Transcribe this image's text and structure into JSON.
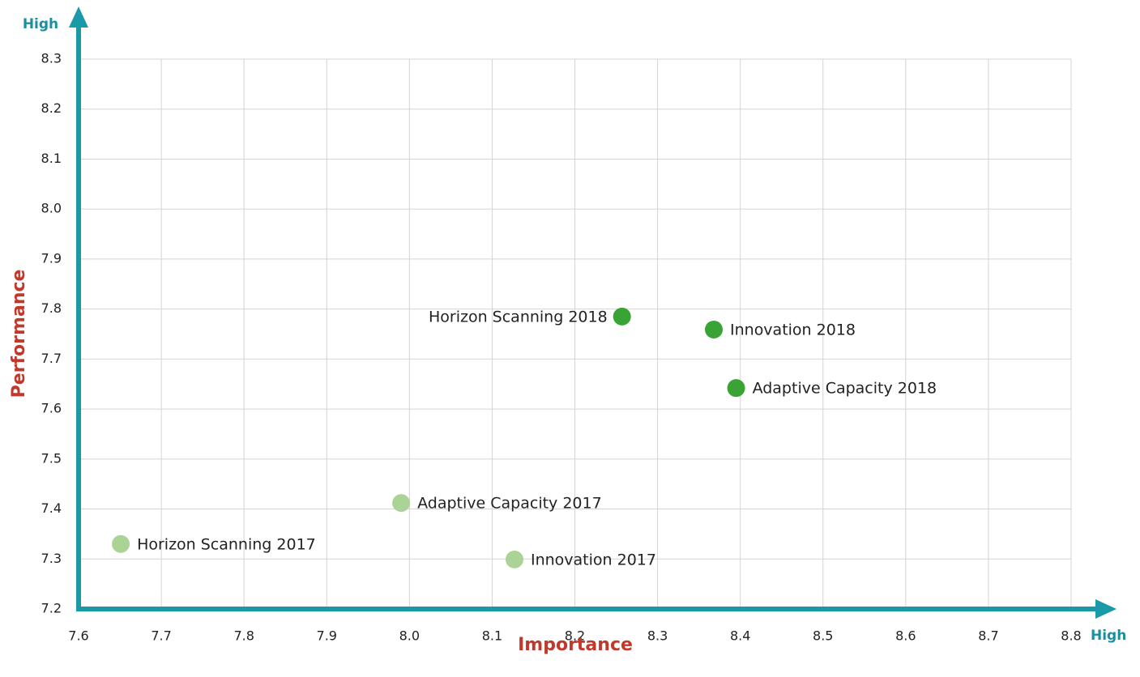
{
  "chart_data": {
    "type": "scatter",
    "x_label": "Importance",
    "y_label": "Performance",
    "x_high_label": "High",
    "y_high_label": "High",
    "point_labels": [
      "Horizon Scanning 2018",
      "Innovation 2018",
      "Adaptive Capacity 2018",
      "Adaptive Capacity 2017",
      "Horizon Scanning 2017",
      "Innovation 2017"
    ],
    "x": [
      8.257,
      8.368,
      8.395,
      7.99,
      7.651,
      8.127
    ],
    "values": [
      7.785,
      7.759,
      7.642,
      7.412,
      7.33,
      7.299
    ],
    "colors": [
      "#3aa335",
      "#3aa335",
      "#3aa335",
      "#acd396",
      "#acd396",
      "#acd396"
    ],
    "xlim": [
      7.6,
      8.8
    ],
    "xticks": [
      7.6,
      7.7,
      7.8,
      7.9,
      {
        "value": 8,
        "label": "8.0"
      },
      8.1,
      8.2,
      8.3,
      8.4,
      8.5,
      8.6,
      8.7,
      8.8
    ],
    "ylim": [
      7.2,
      8.3
    ],
    "yticks": [
      7.2,
      7.3,
      7.4,
      7.5,
      7.6,
      7.7,
      7.8,
      7.9,
      {
        "value": 8,
        "label": "8.0"
      },
      8.1,
      8.2,
      8.3
    ],
    "grid": true,
    "axis_color": "#1a9aa8"
  }
}
